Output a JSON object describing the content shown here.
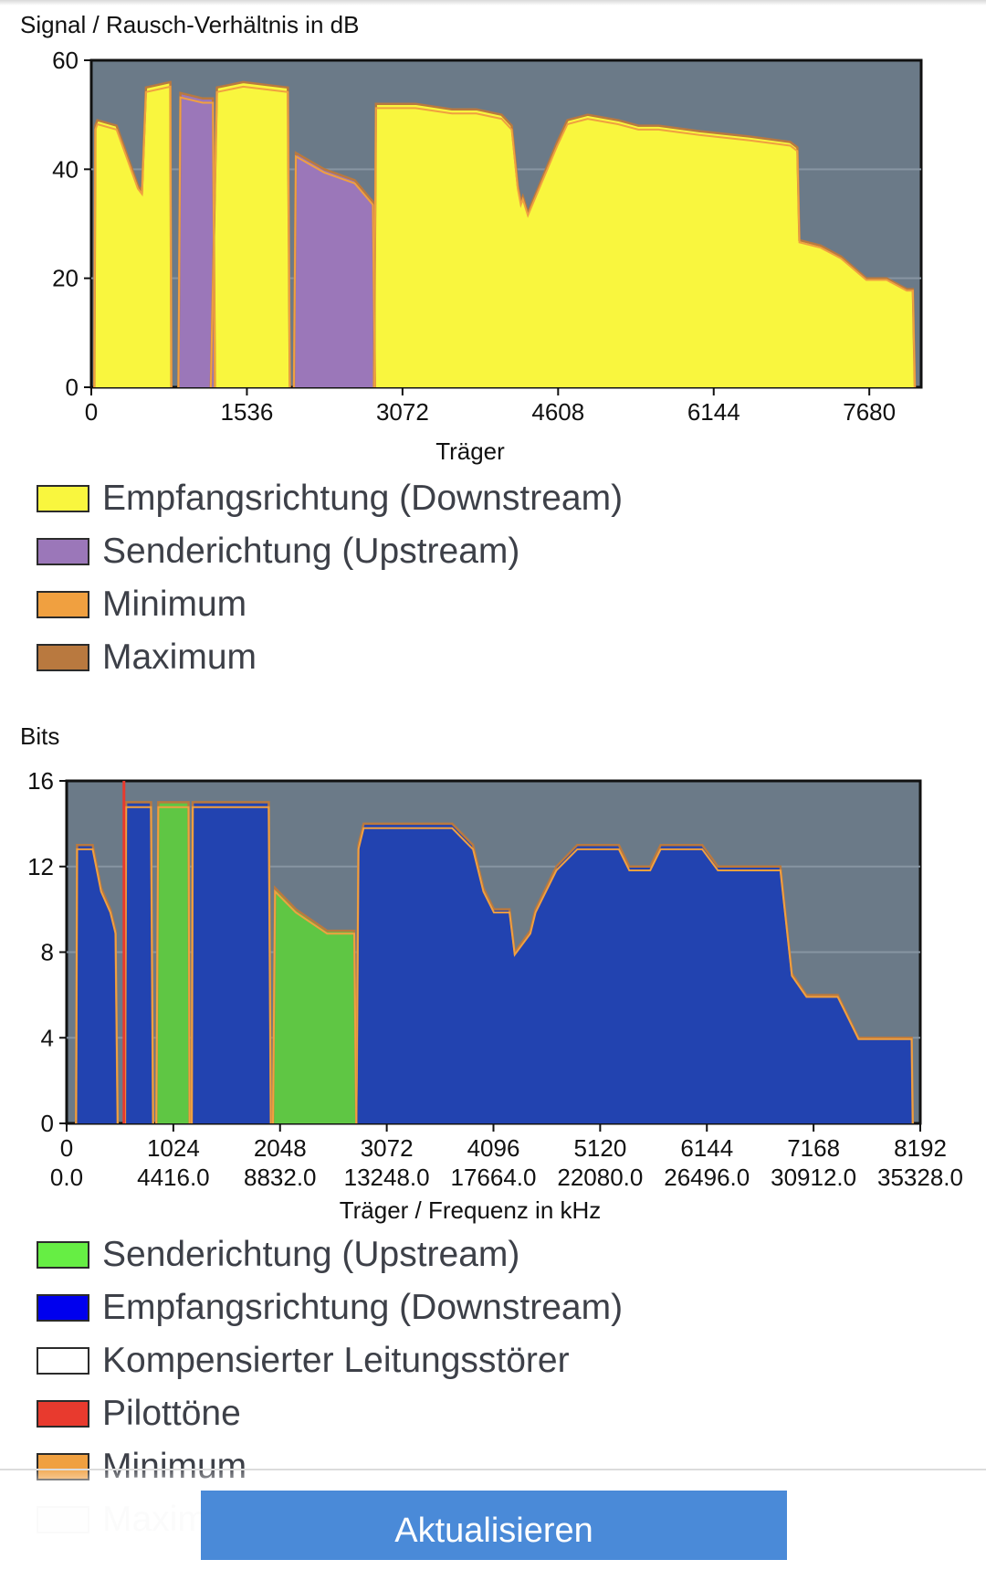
{
  "charts": {
    "snr": {
      "ylabel": "Signal / Rausch-Verhältnis in dB",
      "xlabel": "Träger"
    },
    "bits": {
      "ylabel": "Bits",
      "xlabel": "Träger / Frequenz in kHz"
    }
  },
  "legend_snr": [
    {
      "label": "Empfangsrichtung (Downstream)",
      "color": "#f9f63e"
    },
    {
      "label": "Senderichtung (Upstream)",
      "color": "#9b77b9"
    },
    {
      "label": "Minimum",
      "color": "#f0a040"
    },
    {
      "label": "Maximum",
      "color": "#b9793f"
    }
  ],
  "legend_bits": [
    {
      "label": "Senderichtung (Upstream)",
      "color": "#66ee44"
    },
    {
      "label": "Empfangsrichtung (Downstream)",
      "color": "#0000ee"
    },
    {
      "label": "Kompensierter Leitungsstörer",
      "color": "#ffffff"
    },
    {
      "label": "Pilottöne",
      "color": "#e83a2e"
    },
    {
      "label": "Minimum",
      "color": "#f0a040"
    },
    {
      "label": "Maxim",
      "color": "#e8d8c4"
    }
  ],
  "button": {
    "refresh_label": "Aktualisieren"
  },
  "chart_data": [
    {
      "type": "area",
      "title": "",
      "ylabel": "Signal / Rausch-Verhältnis in dB",
      "xlabel": "Träger",
      "xlim": [
        0,
        8192
      ],
      "ylim": [
        0,
        60
      ],
      "xticks": [
        0,
        1536,
        3072,
        4608,
        6144,
        7680
      ],
      "yticks": [
        0,
        20,
        40,
        60
      ],
      "grid": "horizontal",
      "series": [
        {
          "name": "Empfangsrichtung (Downstream)",
          "color": "#f9f63e",
          "segments": [
            [
              [
                30,
                0
              ],
              [
                40,
                48
              ],
              [
                60,
                49
              ],
              [
                250,
                48
              ],
              [
                460,
                37
              ],
              [
                500,
                36
              ],
              [
                540,
                55
              ],
              [
                780,
                56
              ],
              [
                790,
                0
              ]
            ],
            [
              [
                1180,
                0
              ],
              [
                1240,
                55
              ],
              [
                1500,
                56
              ],
              [
                1940,
                55
              ],
              [
                1960,
                0
              ]
            ],
            [
              [
                2790,
                0
              ],
              [
                2810,
                52
              ],
              [
                3200,
                52
              ],
              [
                3560,
                51
              ],
              [
                3800,
                51
              ],
              [
                4050,
                50
              ],
              [
                4150,
                48
              ],
              [
                4210,
                37
              ],
              [
                4240,
                34
              ],
              [
                4260,
                35
              ],
              [
                4310,
                32
              ],
              [
                4600,
                45
              ],
              [
                4700,
                49
              ],
              [
                4900,
                50
              ],
              [
                5200,
                49
              ],
              [
                5400,
                48
              ],
              [
                5600,
                48
              ],
              [
                6000,
                47
              ],
              [
                6500,
                46
              ],
              [
                6900,
                45
              ],
              [
                6970,
                44
              ],
              [
                6990,
                27
              ],
              [
                7200,
                26
              ],
              [
                7400,
                24
              ],
              [
                7650,
                20
              ],
              [
                7850,
                20
              ],
              [
                8050,
                18
              ],
              [
                8110,
                18
              ],
              [
                8130,
                0
              ]
            ]
          ]
        },
        {
          "name": "Senderichtung (Upstream)",
          "color": "#9b77b9",
          "segments": [
            [
              [
                860,
                0
              ],
              [
                880,
                54
              ],
              [
                1100,
                53
              ],
              [
                1200,
                53
              ],
              [
                1220,
                0
              ]
            ],
            [
              [
                2000,
                0
              ],
              [
                2020,
                43
              ],
              [
                2300,
                40
              ],
              [
                2600,
                38
              ],
              [
                2780,
                34
              ],
              [
                2800,
                0
              ]
            ]
          ]
        }
      ]
    },
    {
      "type": "area",
      "title": "",
      "ylabel": "Bits",
      "xlabel": "Träger / Frequenz in kHz",
      "xlim": [
        0,
        8192
      ],
      "ylim": [
        0,
        16
      ],
      "xticks": [
        0,
        1024,
        2048,
        3072,
        4096,
        5120,
        6144,
        7168,
        8192
      ],
      "xticks_khz": [
        "0.0",
        "4416.0",
        "8832.0",
        "13248.0",
        "17664.0",
        "22080.0",
        "26496.0",
        "30912.0",
        "35328.0"
      ],
      "yticks": [
        0,
        4,
        8,
        12,
        16
      ],
      "grid": "horizontal",
      "pilot_tone_carrier": 550,
      "series": [
        {
          "name": "Empfangsrichtung (Downstream)",
          "color": "#2243b0",
          "segments": [
            [
              [
                90,
                0
              ],
              [
                100,
                13
              ],
              [
                250,
                13
              ],
              [
                330,
                11
              ],
              [
                420,
                10
              ],
              [
                470,
                9
              ],
              [
                490,
                0
              ]
            ],
            [
              [
                560,
                0
              ],
              [
                570,
                15
              ],
              [
                810,
                15
              ],
              [
                830,
                0
              ]
            ],
            [
              [
                1200,
                0
              ],
              [
                1210,
                15
              ],
              [
                1940,
                15
              ],
              [
                1960,
                0
              ]
            ],
            [
              [
                2780,
                0
              ],
              [
                2800,
                13
              ],
              [
                2850,
                14
              ],
              [
                3300,
                14
              ],
              [
                3700,
                14
              ],
              [
                3900,
                13
              ],
              [
                4000,
                11
              ],
              [
                4100,
                10
              ],
              [
                4250,
                10
              ],
              [
                4300,
                8
              ],
              [
                4450,
                9
              ],
              [
                4500,
                10
              ],
              [
                4600,
                11
              ],
              [
                4700,
                12
              ],
              [
                4900,
                13
              ],
              [
                5300,
                13
              ],
              [
                5400,
                12
              ],
              [
                5600,
                12
              ],
              [
                5700,
                13
              ],
              [
                6100,
                13
              ],
              [
                6250,
                12
              ],
              [
                6500,
                12
              ],
              [
                6850,
                12
              ],
              [
                6960,
                7
              ],
              [
                7100,
                6
              ],
              [
                7400,
                6
              ],
              [
                7500,
                5
              ],
              [
                7600,
                4
              ],
              [
                7950,
                4
              ],
              [
                8110,
                4
              ],
              [
                8120,
                0
              ]
            ]
          ]
        },
        {
          "name": "Senderichtung (Upstream)",
          "color": "#5fc644",
          "segments": [
            [
              [
                860,
                0
              ],
              [
                880,
                15
              ],
              [
                1100,
                15
              ],
              [
                1170,
                15
              ],
              [
                1180,
                0
              ]
            ],
            [
              [
                1980,
                0
              ],
              [
                2000,
                11
              ],
              [
                2200,
                10
              ],
              [
                2500,
                9
              ],
              [
                2760,
                9
              ],
              [
                2780,
                0
              ]
            ]
          ]
        }
      ]
    }
  ]
}
